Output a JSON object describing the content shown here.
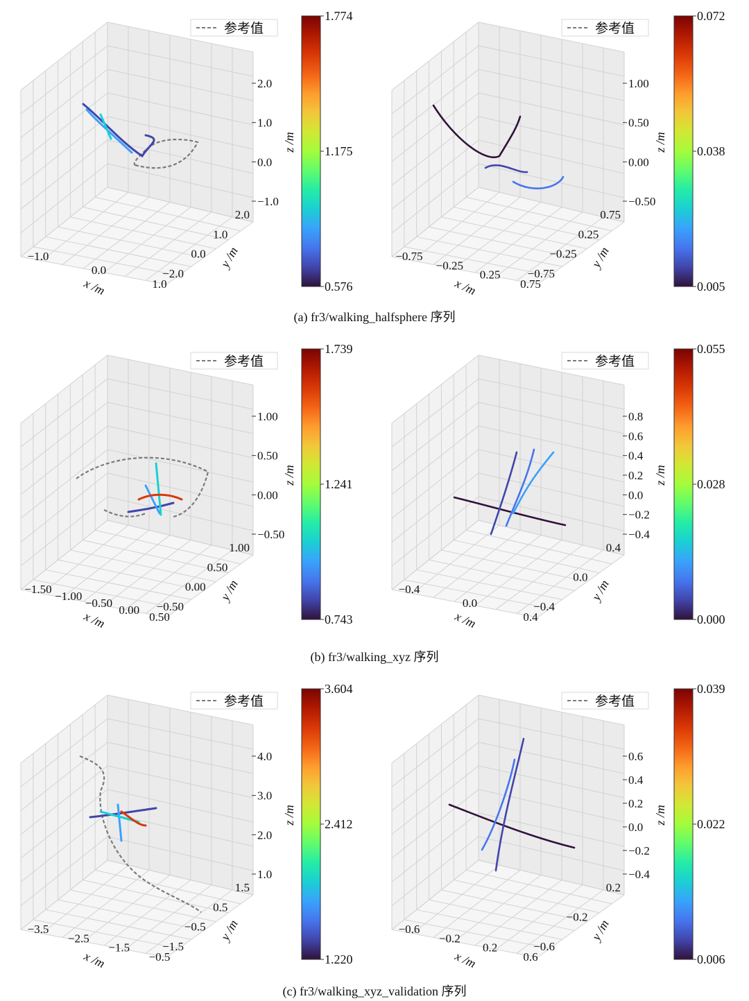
{
  "figure": {
    "rows": [
      {
        "caption": "(a) fr3/walking_halfsphere 序列",
        "charts": [
          {
            "legend": "参考值",
            "colorbar_ticks": [
              "1.774",
              "1.175",
              "0.576"
            ],
            "colorbar_range": [
              0.576,
              1.774
            ],
            "z_label": "z /m",
            "y_label": "y /m",
            "x_label": "x /m",
            "z_ticks": [
              "2.0",
              "1.0",
              "0.0",
              "−1.0"
            ],
            "y_ticks": [
              "2.0",
              "1.0",
              "0.0",
              "−2.0"
            ],
            "x_ticks": [
              "−1.0",
              "0.0",
              "1.0"
            ]
          },
          {
            "legend": "参考值",
            "colorbar_ticks": [
              "0.072",
              "0.038",
              "0.005"
            ],
            "colorbar_range": [
              0.005,
              0.072
            ],
            "z_label": "z /m",
            "y_label": "y /m",
            "x_label": "x /m",
            "z_ticks": [
              "1.00",
              "0.50",
              "0.00",
              "−0.50"
            ],
            "y_ticks": [
              "0.75",
              "0.25",
              "−0.25",
              "−0.75"
            ],
            "x_ticks": [
              "−0.75",
              "−0.25",
              "0.25",
              "0.75"
            ]
          }
        ]
      },
      {
        "caption": "(b) fr3/walking_xyz 序列",
        "charts": [
          {
            "legend": "参考值",
            "colorbar_ticks": [
              "1.739",
              "1.241",
              "0.743"
            ],
            "colorbar_range": [
              0.743,
              1.739
            ],
            "z_label": "z /m",
            "y_label": "y /m",
            "x_label": "x /m",
            "z_ticks": [
              "1.00",
              "0.50",
              "0.00",
              "−0.50"
            ],
            "y_ticks": [
              "1.00",
              "0.50",
              "0.00",
              "−0.50"
            ],
            "x_ticks": [
              "−1.50",
              "−1.00",
              "−0.50",
              "0.00",
              "0.50"
            ]
          },
          {
            "legend": "参考值",
            "colorbar_ticks": [
              "0.055",
              "0.028",
              "0.000"
            ],
            "colorbar_range": [
              0.0,
              0.055
            ],
            "z_label": "z /m",
            "y_label": "y /m",
            "x_label": "x /m",
            "z_ticks": [
              "0.8",
              "0.6",
              "0.4",
              "0.2",
              "0.0",
              "−0.2",
              "−0.4"
            ],
            "y_ticks": [
              "0.4",
              "0.0",
              "−0.4"
            ],
            "x_ticks": [
              "−0.4",
              "0.0",
              "0.4"
            ]
          }
        ]
      },
      {
        "caption": "(c) fr3/walking_xyz_validation 序列",
        "charts": [
          {
            "legend": "参考值",
            "colorbar_ticks": [
              "3.604",
              "2.412",
              "1.220"
            ],
            "colorbar_range": [
              1.22,
              3.604
            ],
            "z_label": "z /m",
            "y_label": "y /m",
            "x_label": "x /m",
            "z_ticks": [
              "4.0",
              "3.0",
              "2.0",
              "1.0"
            ],
            "y_ticks": [
              "1.5",
              "0.5",
              "−0.5",
              "−1.5"
            ],
            "x_ticks": [
              "−3.5",
              "−2.5",
              "−1.5",
              "−0.5"
            ]
          },
          {
            "legend": "参考值",
            "colorbar_ticks": [
              "0.039",
              "0.022",
              "0.006"
            ],
            "colorbar_range": [
              0.006,
              0.039
            ],
            "z_label": "z /m",
            "y_label": "y /m",
            "x_label": "x /m",
            "z_ticks": [
              "0.6",
              "0.4",
              "0.2",
              "0.0",
              "−0.2",
              "−0.4"
            ],
            "y_ticks": [
              "0.2",
              "−0.2",
              "−0.6"
            ],
            "x_ticks": [
              "−0.6",
              "−0.2",
              "0.2",
              "0.6"
            ]
          }
        ]
      }
    ]
  },
  "colors": {
    "reference_line": "#7a7a7a",
    "pane_fill": "#f2f2f2",
    "grid": "#d2d2d2",
    "colormap": [
      "#30123b",
      "#4145ab",
      "#4675ed",
      "#39a2fc",
      "#1bcfd4",
      "#24eca6",
      "#61fc6c",
      "#a4fc3b",
      "#d1e834",
      "#f3c63a",
      "#fe9b2d",
      "#f36315",
      "#d93806",
      "#b11901",
      "#7a0403"
    ]
  },
  "chart_data": [
    {
      "type": "line",
      "panel": "a-left",
      "title": "",
      "legend": [
        "参考值"
      ],
      "zlabel": "z /m",
      "ylabel": "y /m",
      "xlabel": "x /m",
      "colorbar": [
        0.576,
        1.774
      ]
    },
    {
      "type": "line",
      "panel": "a-right",
      "title": "",
      "legend": [
        "参考值"
      ],
      "zlabel": "z /m",
      "ylabel": "y /m",
      "xlabel": "x /m",
      "colorbar": [
        0.005,
        0.072
      ]
    },
    {
      "type": "line",
      "panel": "b-left",
      "title": "",
      "legend": [
        "参考值"
      ],
      "zlabel": "z /m",
      "ylabel": "y /m",
      "xlabel": "x /m",
      "colorbar": [
        0.743,
        1.739
      ]
    },
    {
      "type": "line",
      "panel": "b-right",
      "title": "",
      "legend": [
        "参考值"
      ],
      "zlabel": "z /m",
      "ylabel": "y /m",
      "xlabel": "x /m",
      "colorbar": [
        0.0,
        0.055
      ]
    },
    {
      "type": "line",
      "panel": "c-left",
      "title": "",
      "legend": [
        "参考值"
      ],
      "zlabel": "z /m",
      "ylabel": "y /m",
      "xlabel": "x /m",
      "colorbar": [
        1.22,
        3.604
      ]
    },
    {
      "type": "line",
      "panel": "c-right",
      "title": "",
      "legend": [
        "参考值"
      ],
      "zlabel": "z /m",
      "ylabel": "y /m",
      "xlabel": "x /m",
      "colorbar": [
        0.006,
        0.039
      ]
    }
  ]
}
